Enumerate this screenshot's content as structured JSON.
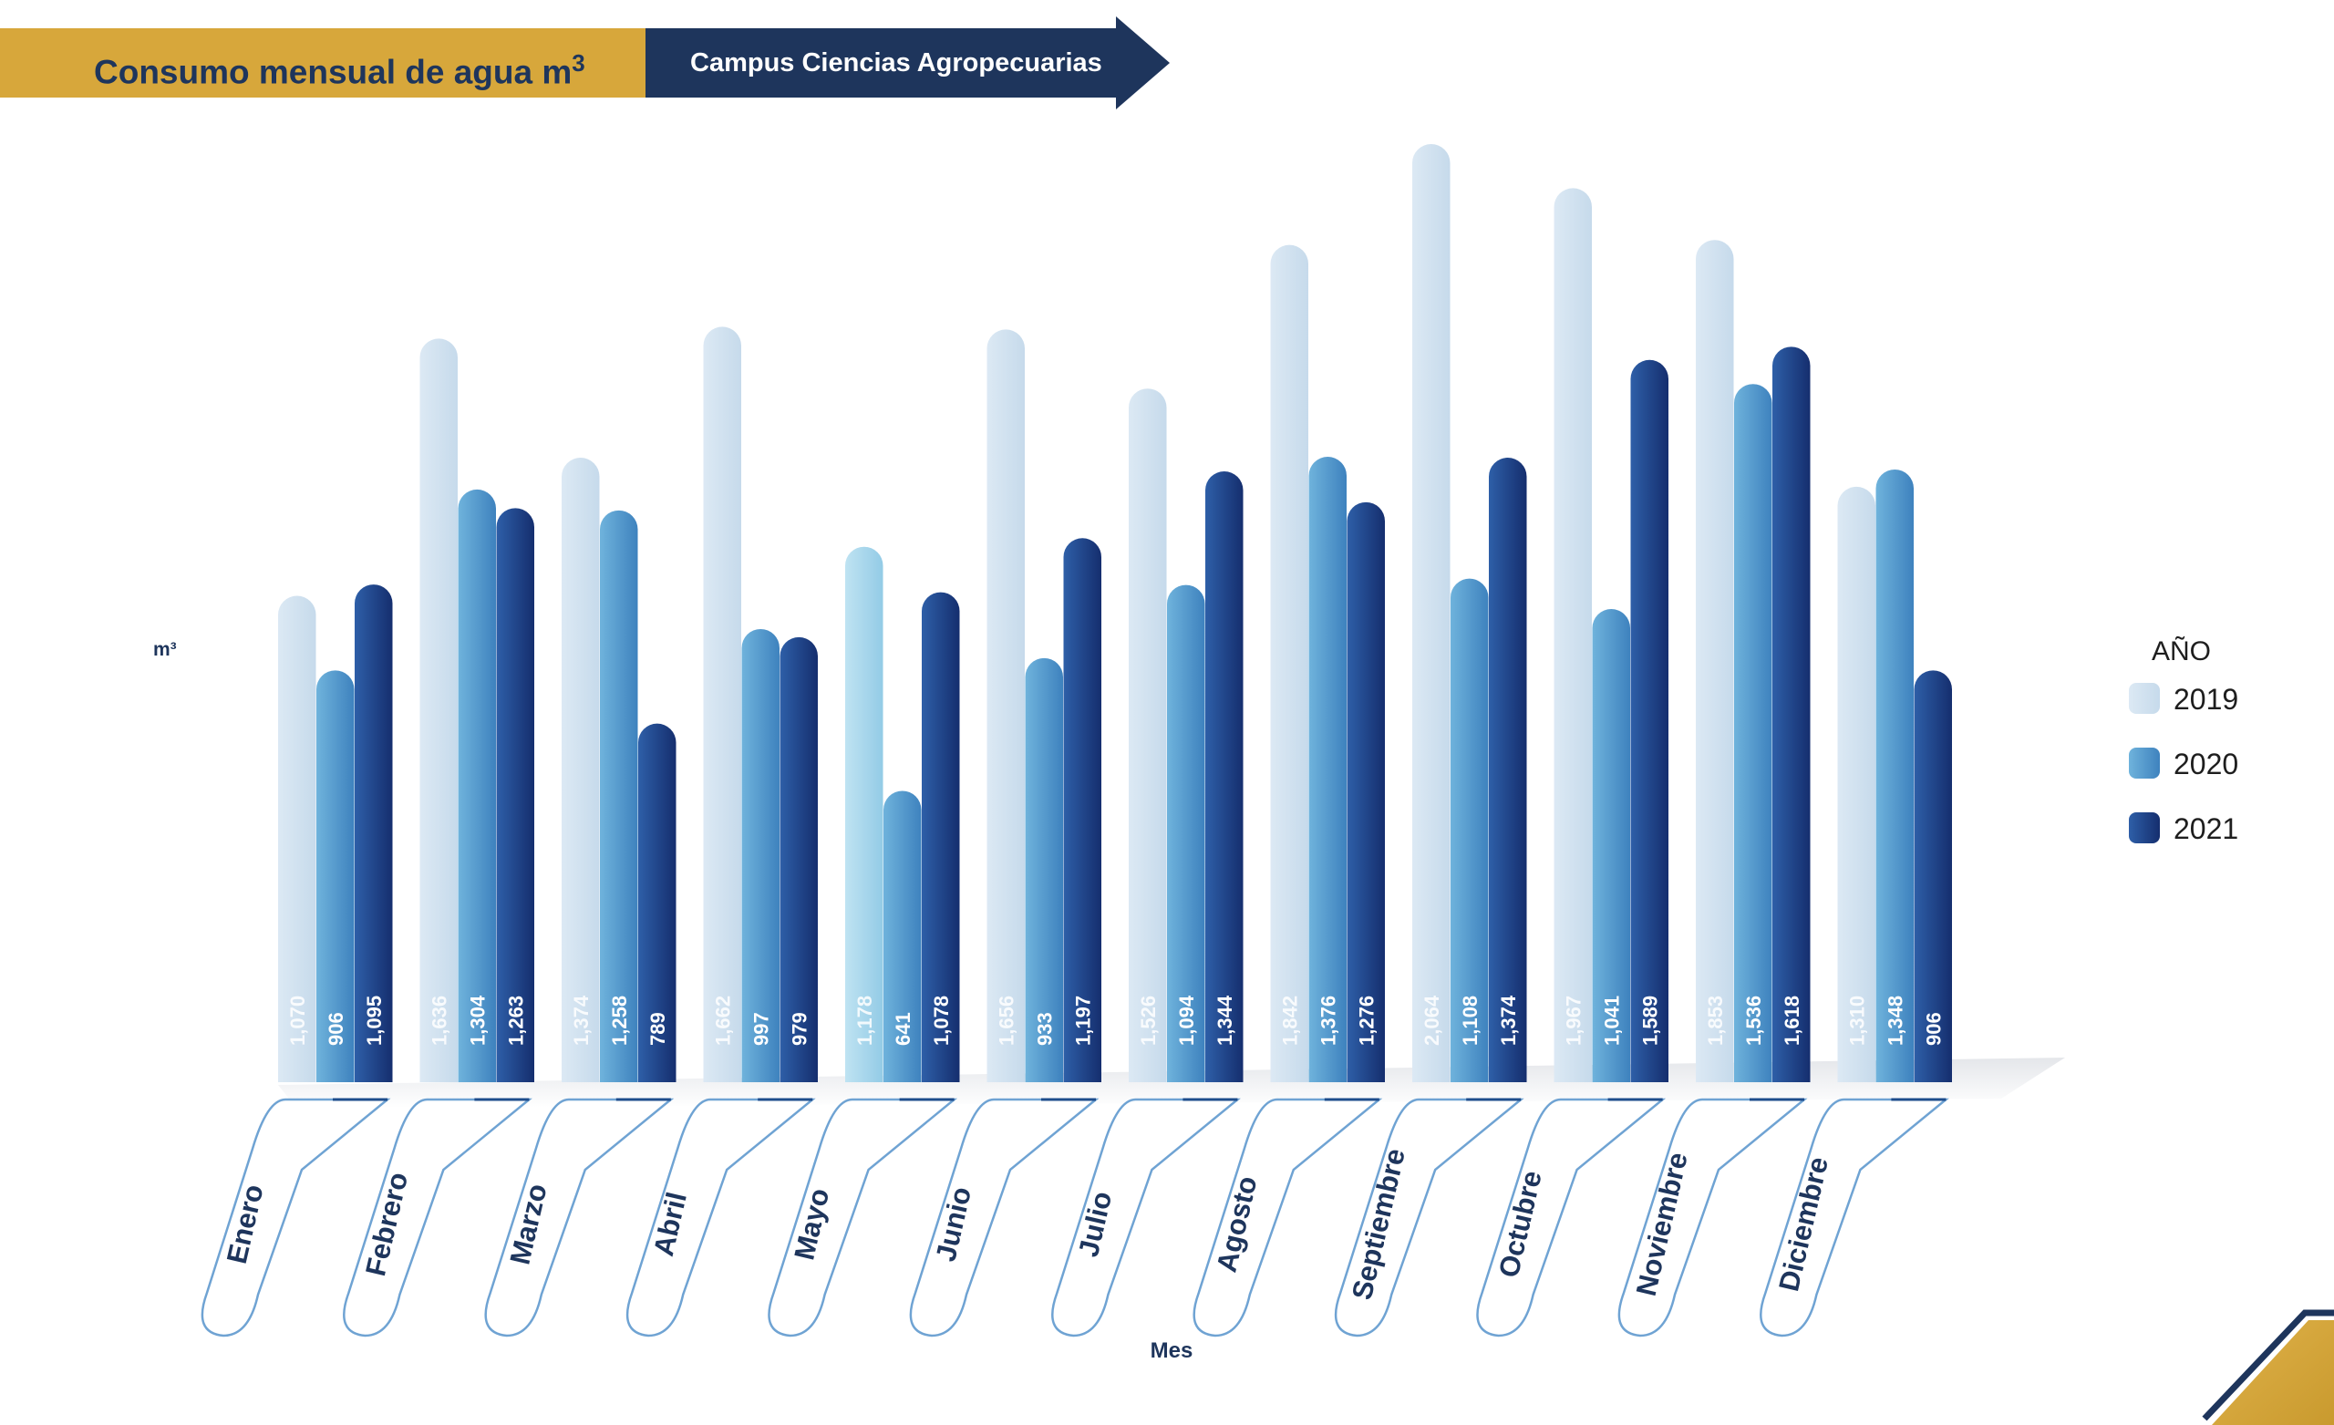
{
  "header": {
    "title_main": "Consumo mensual de agua m",
    "title_sup": "3",
    "subtitle": "Campus Ciencias Agropecuarias"
  },
  "colors": {
    "gold": "#D7A73B",
    "navy": "#1E355C",
    "2019": "#CFE1EF",
    "2020": "#4E96C9",
    "2021": "#1E3F87"
  },
  "chart_data": {
    "type": "bar",
    "title": "Consumo mensual de agua m³",
    "subtitle": "Campus Ciencias Agropecuarias",
    "xlabel": "Mes",
    "ylabel": "m³",
    "ylim": [
      0,
      2064
    ],
    "grid": false,
    "legend_title": "AÑO",
    "legend_position": "right",
    "categories": [
      "Enero",
      "Febrero",
      "Marzo",
      "Abril",
      "Mayo",
      "Junio",
      "Julio",
      "Agosto",
      "Septiembre",
      "Octubre",
      "Noviembre",
      "Diciembre"
    ],
    "series": [
      {
        "name": "2019",
        "values": [
          1070,
          1636,
          1374,
          1662,
          1178,
          1656,
          1526,
          1842,
          2064,
          1967,
          1853,
          1310
        ],
        "labels": [
          "1,070",
          "1,636",
          "1,374",
          "1,662",
          "1,178",
          "1,656",
          "1,526",
          "1,842",
          "2,064",
          "1,967",
          "1,853",
          "1,310"
        ]
      },
      {
        "name": "2020",
        "values": [
          906,
          1304,
          1258,
          997,
          641,
          933,
          1094,
          1376,
          1108,
          1041,
          1536,
          1348
        ],
        "labels": [
          "906",
          "1,304",
          "1,258",
          "997",
          "641",
          "933",
          "1,094",
          "1,376",
          "1,108",
          "1,041",
          "1,536",
          "1,348"
        ]
      },
      {
        "name": "2021",
        "values": [
          1095,
          1263,
          789,
          979,
          1078,
          1197,
          1344,
          1276,
          1374,
          1589,
          1618,
          906
        ],
        "labels": [
          "1,095",
          "1,263",
          "789",
          "979",
          "1,078",
          "1,197",
          "1,344",
          "1,276",
          "1,374",
          "1,589",
          "1,618",
          "906"
        ]
      }
    ]
  }
}
